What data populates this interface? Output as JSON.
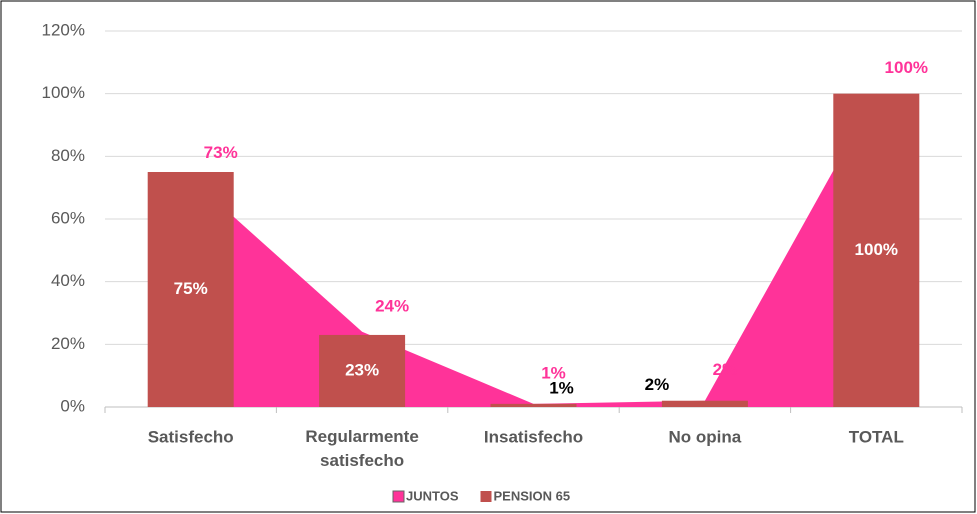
{
  "chart_data": {
    "type": "bar-area",
    "categories": [
      "Satisfecho",
      "Regularmente satisfecho",
      "Insatisfecho",
      "No opina",
      "TOTAL"
    ],
    "series": [
      {
        "name": "JUNTOS",
        "type": "area",
        "color": "#ff3399",
        "values": [
          73,
          24,
          1,
          2,
          100
        ],
        "value_labels": [
          "73%",
          "24%",
          "1%",
          "2%",
          "100%"
        ]
      },
      {
        "name": "PENSION 65",
        "type": "bar",
        "color": "#c0504d",
        "values": [
          75,
          23,
          1,
          2,
          100
        ],
        "value_labels": [
          "75%",
          "23%",
          "1%",
          "2%",
          "100%"
        ]
      }
    ],
    "ylim": [
      0,
      120
    ],
    "yticks": [
      {
        "value": 0,
        "label": "0%"
      },
      {
        "value": 20,
        "label": "20%"
      },
      {
        "value": 40,
        "label": "40%"
      },
      {
        "value": 60,
        "label": "60%"
      },
      {
        "value": 80,
        "label": "80%"
      },
      {
        "value": 100,
        "label": "100%"
      },
      {
        "value": 120,
        "label": "120%"
      }
    ],
    "grid": true,
    "legend": "bottom"
  }
}
